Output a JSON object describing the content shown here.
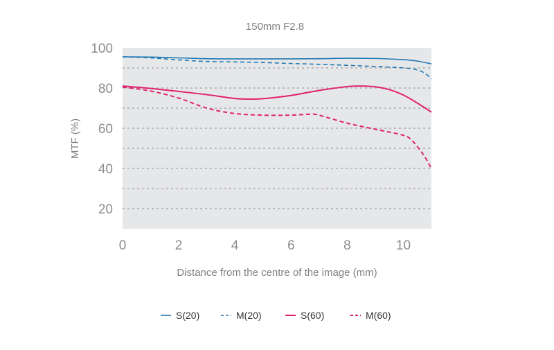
{
  "chart_data": {
    "type": "line",
    "title": "150mm F2.8",
    "xlabel": "Distance from the centre of the image (mm)",
    "ylabel": "MTF (%)",
    "xlim": [
      0,
      11
    ],
    "ylim": [
      10,
      100
    ],
    "x_ticks": [
      "0",
      "2",
      "4",
      "6",
      "8",
      "10"
    ],
    "y_ticks": [
      "20",
      "40",
      "60",
      "80",
      "100"
    ],
    "grid": "dashed horizontal lines every 10",
    "legend_position": "bottom",
    "series": [
      {
        "name": "S(20)",
        "color": "#1f78b4",
        "style": "solid",
        "x": [
          0,
          1,
          2,
          3,
          4,
          5,
          6,
          7,
          8,
          9,
          10,
          10.5,
          11
        ],
        "y": [
          95.5,
          95.4,
          95.0,
          94.6,
          94.5,
          94.5,
          94.5,
          94.6,
          94.8,
          94.7,
          94.1,
          93.4,
          92.0
        ]
      },
      {
        "name": "M(20)",
        "color": "#1f78b4",
        "style": "dashed",
        "x": [
          0,
          1,
          2,
          3,
          4,
          5,
          6,
          7,
          8,
          9,
          10,
          10.5,
          10.8,
          11
        ],
        "y": [
          95.5,
          95.0,
          94.0,
          93.2,
          93.0,
          92.7,
          92.2,
          91.8,
          91.3,
          90.7,
          90.0,
          89.0,
          87.0,
          84.5
        ]
      },
      {
        "name": "S(60)",
        "color": "#e0226e",
        "style": "solid",
        "x": [
          0,
          1,
          2,
          3,
          4,
          4.5,
          5,
          6,
          7,
          8,
          8.5,
          9,
          9.5,
          10,
          10.5,
          11
        ],
        "y": [
          81.0,
          79.8,
          78.3,
          76.7,
          74.8,
          74.5,
          74.7,
          76.3,
          78.8,
          80.7,
          81.0,
          80.6,
          79.2,
          76.5,
          72.5,
          68.0
        ]
      },
      {
        "name": "M(60)",
        "color": "#e0226e",
        "style": "dashed",
        "x": [
          0,
          1,
          2,
          3,
          4,
          5,
          6,
          6.7,
          7,
          8,
          9,
          10,
          10.3,
          10.6,
          10.8,
          11
        ],
        "y": [
          80.5,
          78.5,
          75.0,
          70.0,
          67.3,
          66.5,
          66.5,
          67.0,
          66.5,
          62.5,
          59.5,
          56.5,
          54.0,
          49.0,
          45.0,
          40.0
        ]
      }
    ]
  }
}
